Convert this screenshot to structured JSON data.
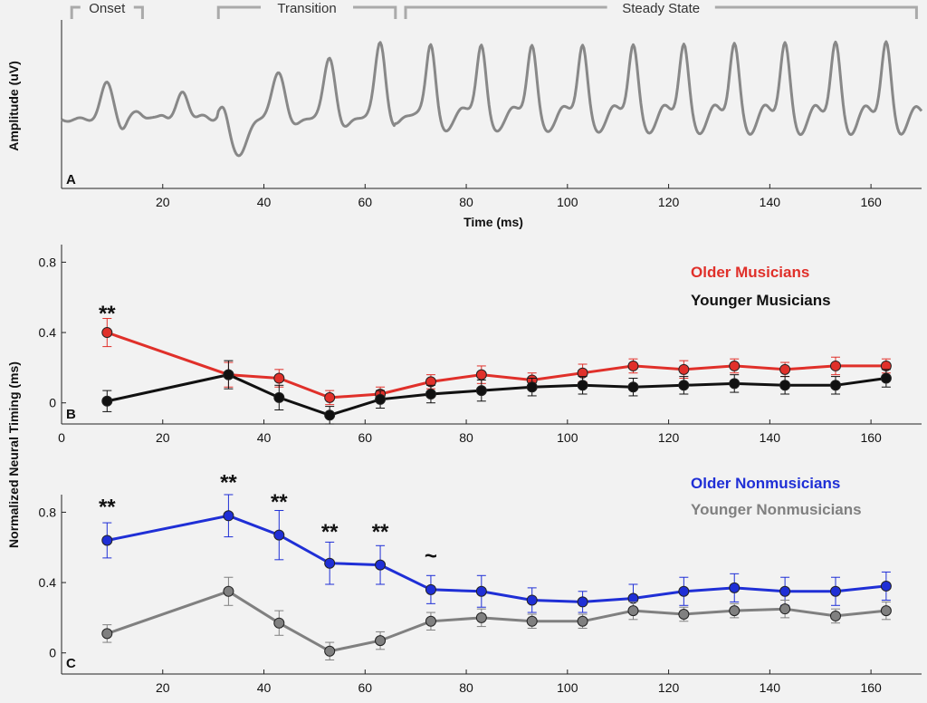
{
  "chart_data": [
    {
      "panel": "A",
      "type": "line",
      "xlabel": "Time (ms)",
      "ylabel": "Amplitude (uV)",
      "xlim": [
        0,
        170
      ],
      "xticks": [
        20,
        40,
        60,
        80,
        100,
        120,
        140,
        160
      ],
      "yticks_shown": false,
      "regions": [
        {
          "label": "Onset",
          "start": 2,
          "end": 16
        },
        {
          "label": "Transition",
          "start": 31,
          "end": 66
        },
        {
          "label": "Steady State",
          "start": 68,
          "end": 169
        }
      ],
      "color": "#888888"
    },
    {
      "panel": "B",
      "type": "line",
      "ylabel": "Normalized Neural Timing (ms)",
      "xlim": [
        0,
        170
      ],
      "ylim": [
        -0.12,
        0.9
      ],
      "xticks": [
        0,
        20,
        40,
        60,
        80,
        100,
        120,
        140,
        160
      ],
      "yticks": [
        0,
        0.4,
        0.8
      ],
      "ytick_labels": [
        "0",
        "0.4",
        "0.8"
      ],
      "x": [
        9,
        33,
        43,
        53,
        63,
        73,
        83,
        93,
        103,
        113,
        123,
        133,
        143,
        153,
        163
      ],
      "series": [
        {
          "name": "Older Musicians",
          "color": "#e0302a",
          "values": [
            0.4,
            0.16,
            0.14,
            0.03,
            0.05,
            0.12,
            0.16,
            0.13,
            0.17,
            0.21,
            0.19,
            0.21,
            0.19,
            0.21,
            0.21
          ],
          "errors": [
            0.08,
            0.07,
            0.05,
            0.04,
            0.04,
            0.04,
            0.05,
            0.04,
            0.05,
            0.04,
            0.05,
            0.04,
            0.04,
            0.05,
            0.04
          ]
        },
        {
          "name": "Younger Musicians",
          "color": "#111111",
          "values": [
            0.01,
            0.16,
            0.03,
            -0.07,
            0.02,
            0.05,
            0.07,
            0.09,
            0.1,
            0.09,
            0.1,
            0.11,
            0.1,
            0.1,
            0.14
          ],
          "errors": [
            0.06,
            0.08,
            0.07,
            0.05,
            0.05,
            0.05,
            0.06,
            0.05,
            0.05,
            0.05,
            0.05,
            0.05,
            0.05,
            0.05,
            0.05
          ]
        }
      ],
      "annotations": [
        {
          "x": 9,
          "y": 0.52,
          "text": "**"
        }
      ],
      "legend_position": "top-right"
    },
    {
      "panel": "C",
      "type": "line",
      "xlim": [
        0,
        170
      ],
      "ylim": [
        -0.12,
        0.9
      ],
      "xticks": [
        20,
        40,
        60,
        80,
        100,
        120,
        140,
        160
      ],
      "yticks": [
        0,
        0.4,
        0.8
      ],
      "ytick_labels": [
        "0",
        "0.4",
        "0.8"
      ],
      "x": [
        9,
        33,
        43,
        53,
        63,
        73,
        83,
        93,
        103,
        113,
        123,
        133,
        143,
        153,
        163
      ],
      "series": [
        {
          "name": "Older Nonmusicians",
          "color": "#1f2fd6",
          "values": [
            0.64,
            0.78,
            0.67,
            0.51,
            0.5,
            0.36,
            0.35,
            0.3,
            0.29,
            0.31,
            0.35,
            0.37,
            0.35,
            0.35,
            0.38
          ],
          "errors": [
            0.1,
            0.12,
            0.14,
            0.12,
            0.11,
            0.08,
            0.09,
            0.07,
            0.06,
            0.08,
            0.08,
            0.08,
            0.08,
            0.08,
            0.08
          ]
        },
        {
          "name": "Younger Nonmusicians",
          "color": "#808080",
          "values": [
            0.11,
            0.35,
            0.17,
            0.01,
            0.07,
            0.18,
            0.2,
            0.18,
            0.18,
            0.24,
            0.22,
            0.24,
            0.25,
            0.21,
            0.24
          ],
          "errors": [
            0.05,
            0.08,
            0.07,
            0.05,
            0.05,
            0.05,
            0.05,
            0.04,
            0.04,
            0.05,
            0.04,
            0.04,
            0.05,
            0.04,
            0.05
          ]
        }
      ],
      "annotations": [
        {
          "x": 9,
          "y": 0.84,
          "text": "**"
        },
        {
          "x": 33,
          "y": 0.98,
          "text": "**"
        },
        {
          "x": 43,
          "y": 0.87,
          "text": "**"
        },
        {
          "x": 53,
          "y": 0.7,
          "text": "**"
        },
        {
          "x": 63,
          "y": 0.7,
          "text": "**"
        },
        {
          "x": 73,
          "y": 0.51,
          "text": "~"
        }
      ],
      "legend_position": "top-right"
    }
  ]
}
